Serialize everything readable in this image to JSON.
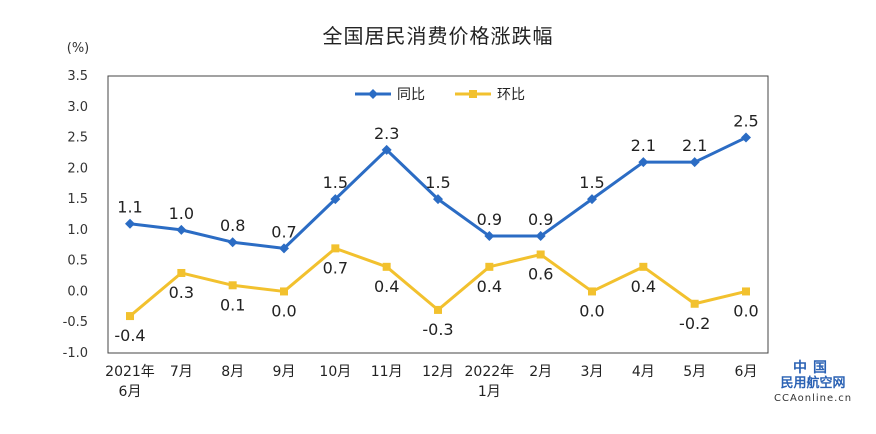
{
  "chart_data": {
    "type": "line",
    "title": "全国居民消费价格涨跌幅",
    "ylabel": "(%)",
    "ylim": [
      -1.0,
      3.5
    ],
    "yticks": [
      "3.5",
      "3.0",
      "2.5",
      "2.0",
      "1.5",
      "1.0",
      "0.5",
      "0.0",
      "-0.5",
      "-1.0"
    ],
    "ytick_values": [
      3.5,
      3.0,
      2.5,
      2.0,
      1.5,
      1.0,
      0.5,
      0.0,
      -0.5,
      -1.0
    ],
    "categories": [
      [
        "2021年",
        "6月"
      ],
      [
        "7月"
      ],
      [
        "8月"
      ],
      [
        "9月"
      ],
      [
        "10月"
      ],
      [
        "11月"
      ],
      [
        "12月"
      ],
      [
        "2022年",
        "1月"
      ],
      [
        "2月"
      ],
      [
        "3月"
      ],
      [
        "4月"
      ],
      [
        "5月"
      ],
      [
        "6月"
      ]
    ],
    "legend_position": "top-center",
    "series": [
      {
        "name": "同比",
        "color": "#2b6cc4",
        "marker": "diamond",
        "label_placement": "above",
        "values": [
          1.1,
          1.0,
          0.8,
          0.7,
          1.5,
          2.3,
          1.5,
          0.9,
          0.9,
          1.5,
          2.1,
          2.1,
          2.5
        ],
        "labels": [
          "1.1",
          "1.0",
          "0.8",
          "0.7",
          "1.5",
          "2.3",
          "1.5",
          "0.9",
          "0.9",
          "1.5",
          "2.1",
          "2.1",
          "2.5"
        ]
      },
      {
        "name": "环比",
        "color": "#f2c12e",
        "marker": "square",
        "label_placement": "below",
        "values": [
          -0.4,
          0.3,
          0.1,
          0.0,
          0.7,
          0.4,
          -0.3,
          0.4,
          0.6,
          0.0,
          0.4,
          -0.2,
          0.0
        ],
        "labels": [
          "-0.4",
          "0.3",
          "0.1",
          "0.0",
          "0.7",
          "0.4",
          "-0.3",
          "0.4",
          "0.6",
          "0.0",
          "0.4",
          "-0.2",
          "0.0"
        ]
      }
    ]
  },
  "watermark": {
    "line1": "中国",
    "line2": "民用航空网",
    "line3": "CCAonline.cn"
  }
}
